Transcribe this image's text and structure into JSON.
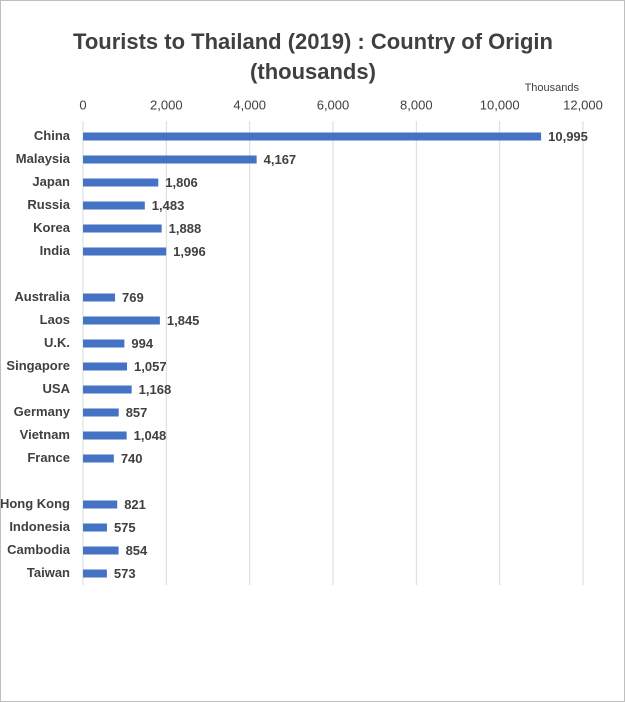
{
  "chart_data": {
    "type": "barh",
    "title": "Tourists to Thailand (2019) : Country of Origin (thousands)",
    "axis_unit": "Thousands",
    "categories": [
      "China",
      "Malaysia",
      "Japan",
      "Russia",
      "Korea",
      "India",
      null,
      "Australia",
      "Laos",
      "U.K.",
      "Singapore",
      "USA",
      "Germany",
      "Vietnam",
      "France",
      null,
      "Hong Kong",
      "Indonesia",
      "Cambodia",
      "Taiwan"
    ],
    "values": [
      10995,
      4167,
      1806,
      1483,
      1888,
      1996,
      null,
      769,
      1845,
      994,
      1057,
      1168,
      857,
      1048,
      740,
      null,
      821,
      575,
      854,
      573
    ],
    "value_labels": [
      "10,995",
      "4,167",
      "1,806",
      "1,483",
      "1,888",
      "1,996",
      null,
      "769",
      "1,845",
      "994",
      "1,057",
      "1,168",
      "857",
      "1,048",
      "740",
      null,
      "821",
      "575",
      "854",
      "573"
    ],
    "color": "#4472c4",
    "xlim": [
      0,
      12000
    ],
    "xticks": [
      0,
      {
        "value": 2000,
        "label": "2,000"
      },
      {
        "value": 4000,
        "label": "4,000"
      },
      {
        "value": 6000,
        "label": "6,000"
      },
      {
        "value": 8000,
        "label": "8,000"
      },
      {
        "value": 10000,
        "label": "10,000"
      },
      {
        "value": 12000,
        "label": "12,000"
      }
    ],
    "grid": true
  }
}
